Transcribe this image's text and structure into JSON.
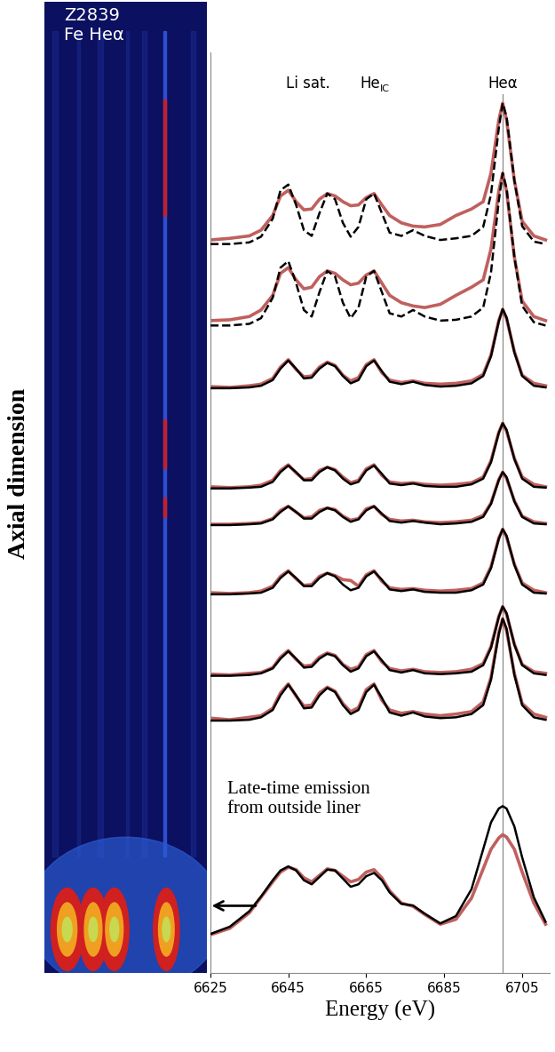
{
  "chart_data": {
    "type": "line",
    "xlabel": "Energy (eV)",
    "ylabel": "Axial dimension",
    "image_label": [
      "Z2839",
      "Fe Heα"
    ],
    "note": "Late-time emission\nfrom outside liner",
    "line_labels": [
      {
        "text": "Li sat.",
        "x": 6650
      },
      {
        "text": "He",
        "subscript": "IC",
        "x": 6666
      },
      {
        "text": "Heα",
        "x": 6700
      }
    ],
    "reference_line_x": 6700,
    "xlim": [
      6625,
      6712
    ],
    "xticks": [
      6625,
      6645,
      6665,
      6685,
      6705
    ],
    "ylim": [
      0,
      11.3
    ],
    "tick_labels": "x",
    "x": [
      6625,
      6630,
      6635,
      6638,
      6641,
      6643,
      6645,
      6647,
      6649,
      6651,
      6653,
      6655,
      6657,
      6659,
      6661,
      6663,
      6665,
      6667,
      6669,
      6671,
      6674,
      6677,
      6680,
      6684,
      6688,
      6692,
      6695,
      6697,
      6699,
      6700,
      6701,
      6703,
      6705,
      6708,
      6711
    ],
    "series": [
      {
        "color": "#c0605e",
        "line_style": "solid",
        "values": [
          9.0,
          9.02,
          9.05,
          9.12,
          9.3,
          9.54,
          9.61,
          9.47,
          9.37,
          9.38,
          9.5,
          9.57,
          9.54,
          9.47,
          9.42,
          9.43,
          9.52,
          9.57,
          9.43,
          9.3,
          9.21,
          9.17,
          9.16,
          9.19,
          9.3,
          9.38,
          9.47,
          9.82,
          10.47,
          10.68,
          10.47,
          9.73,
          9.23,
          9.05,
          9.0
        ]
      },
      {
        "color": "#000000",
        "line_style": "dashed",
        "values": [
          8.95,
          8.95,
          8.97,
          9.04,
          9.26,
          9.61,
          9.68,
          9.43,
          9.12,
          9.05,
          9.33,
          9.57,
          9.5,
          9.21,
          9.04,
          9.16,
          9.5,
          9.57,
          9.33,
          9.09,
          9.05,
          9.12,
          9.05,
          9.0,
          9.02,
          9.05,
          9.16,
          9.56,
          10.37,
          10.68,
          10.51,
          9.73,
          9.17,
          8.98,
          8.95
        ]
      },
      {
        "color": "#c0605e",
        "line_style": "solid",
        "values": [
          8.01,
          8.02,
          8.06,
          8.14,
          8.32,
          8.59,
          8.66,
          8.51,
          8.4,
          8.42,
          8.55,
          8.62,
          8.59,
          8.51,
          8.45,
          8.47,
          8.57,
          8.62,
          8.47,
          8.32,
          8.23,
          8.19,
          8.17,
          8.21,
          8.32,
          8.42,
          8.51,
          8.89,
          9.6,
          9.82,
          9.6,
          8.79,
          8.25,
          8.06,
          8.01
        ]
      },
      {
        "color": "#000000",
        "line_style": "dashed",
        "values": [
          7.95,
          7.95,
          7.97,
          8.04,
          8.29,
          8.66,
          8.74,
          8.47,
          8.14,
          8.06,
          8.36,
          8.62,
          8.55,
          8.23,
          8.04,
          8.17,
          8.55,
          8.62,
          8.36,
          8.1,
          8.06,
          8.14,
          8.06,
          8.01,
          8.02,
          8.06,
          8.17,
          8.6,
          9.48,
          9.82,
          9.63,
          8.79,
          8.19,
          7.99,
          7.95
        ]
      },
      {
        "color": "#c0605e",
        "line_style": "solid",
        "values": [
          7.2,
          7.19,
          7.21,
          7.23,
          7.3,
          7.44,
          7.53,
          7.41,
          7.32,
          7.33,
          7.44,
          7.5,
          7.46,
          7.34,
          7.27,
          7.31,
          7.47,
          7.53,
          7.37,
          7.28,
          7.25,
          7.27,
          7.24,
          7.23,
          7.24,
          7.27,
          7.35,
          7.59,
          8.01,
          8.15,
          8.03,
          7.63,
          7.34,
          7.24,
          7.21
        ]
      },
      {
        "color": "#000000",
        "line_style": "solid",
        "values": [
          7.18,
          7.18,
          7.19,
          7.21,
          7.28,
          7.42,
          7.52,
          7.42,
          7.3,
          7.31,
          7.42,
          7.49,
          7.45,
          7.33,
          7.24,
          7.28,
          7.45,
          7.52,
          7.39,
          7.26,
          7.23,
          7.26,
          7.22,
          7.2,
          7.21,
          7.24,
          7.33,
          7.57,
          8.0,
          8.15,
          8.05,
          7.62,
          7.33,
          7.21,
          7.19
        ]
      },
      {
        "color": "#c0605e",
        "line_style": "solid",
        "values": [
          5.97,
          5.96,
          5.97,
          5.99,
          6.05,
          6.17,
          6.24,
          6.14,
          6.06,
          6.07,
          6.17,
          6.21,
          6.18,
          6.09,
          6.02,
          6.05,
          6.19,
          6.24,
          6.11,
          6.03,
          6.01,
          6.02,
          6.0,
          5.99,
          6.0,
          6.02,
          6.09,
          6.29,
          6.64,
          6.75,
          6.65,
          6.32,
          6.09,
          6.0,
          5.97
        ]
      },
      {
        "color": "#000000",
        "line_style": "solid",
        "values": [
          5.95,
          5.95,
          5.96,
          5.97,
          6.03,
          6.15,
          6.23,
          6.15,
          6.05,
          6.05,
          6.15,
          6.21,
          6.17,
          6.07,
          6.0,
          6.03,
          6.17,
          6.23,
          6.13,
          6.01,
          5.99,
          6.01,
          5.98,
          5.97,
          5.97,
          6.0,
          6.07,
          6.27,
          6.63,
          6.75,
          6.67,
          6.31,
          6.07,
          5.97,
          5.96
        ]
      },
      {
        "color": "#c0605e",
        "line_style": "solid",
        "values": [
          5.51,
          5.51,
          5.52,
          5.53,
          5.58,
          5.68,
          5.73,
          5.66,
          5.59,
          5.6,
          5.68,
          5.71,
          5.69,
          5.61,
          5.56,
          5.58,
          5.7,
          5.73,
          5.63,
          5.57,
          5.55,
          5.56,
          5.54,
          5.53,
          5.54,
          5.56,
          5.62,
          5.77,
          6.06,
          6.15,
          6.07,
          5.8,
          5.61,
          5.54,
          5.52
        ]
      },
      {
        "color": "#000000",
        "line_style": "solid",
        "values": [
          5.5,
          5.5,
          5.51,
          5.52,
          5.57,
          5.66,
          5.73,
          5.66,
          5.58,
          5.58,
          5.66,
          5.71,
          5.68,
          5.6,
          5.54,
          5.57,
          5.68,
          5.73,
          5.64,
          5.55,
          5.53,
          5.55,
          5.53,
          5.51,
          5.52,
          5.54,
          5.6,
          5.76,
          6.05,
          6.15,
          6.09,
          5.79,
          5.6,
          5.52,
          5.51
        ]
      },
      {
        "color": "#c0605e",
        "line_style": "solid",
        "values": [
          4.67,
          4.66,
          4.67,
          4.69,
          4.75,
          4.87,
          4.94,
          4.84,
          4.76,
          4.77,
          4.87,
          4.91,
          4.88,
          4.83,
          4.82,
          4.75,
          4.89,
          4.94,
          4.81,
          4.73,
          4.71,
          4.72,
          4.7,
          4.69,
          4.7,
          4.72,
          4.79,
          4.99,
          5.34,
          5.45,
          5.35,
          5.02,
          4.79,
          4.7,
          4.67
        ]
      },
      {
        "color": "#000000",
        "line_style": "solid",
        "values": [
          4.65,
          4.65,
          4.66,
          4.67,
          4.73,
          4.85,
          4.93,
          4.85,
          4.75,
          4.75,
          4.85,
          4.91,
          4.87,
          4.77,
          4.7,
          4.73,
          4.87,
          4.93,
          4.83,
          4.71,
          4.69,
          4.71,
          4.68,
          4.67,
          4.67,
          4.7,
          4.77,
          4.97,
          5.33,
          5.45,
          5.37,
          5.01,
          4.77,
          4.67,
          4.66
        ]
      },
      {
        "color": "#c0605e",
        "line_style": "solid",
        "values": [
          3.67,
          3.66,
          3.68,
          3.69,
          3.75,
          3.88,
          3.96,
          3.85,
          3.77,
          3.78,
          3.88,
          3.93,
          3.9,
          3.79,
          3.73,
          3.76,
          3.91,
          3.96,
          3.82,
          3.74,
          3.71,
          3.73,
          3.7,
          3.69,
          3.7,
          3.73,
          3.8,
          4.01,
          4.38,
          4.5,
          4.4,
          4.04,
          3.79,
          3.7,
          3.68
        ]
      },
      {
        "color": "#000000",
        "line_style": "solid",
        "values": [
          3.65,
          3.65,
          3.66,
          3.68,
          3.74,
          3.86,
          3.95,
          3.86,
          3.75,
          3.76,
          3.86,
          3.92,
          3.89,
          3.78,
          3.7,
          3.74,
          3.89,
          3.95,
          3.84,
          3.72,
          3.69,
          3.72,
          3.68,
          3.67,
          3.68,
          3.7,
          3.78,
          3.99,
          4.37,
          4.5,
          4.42,
          4.03,
          3.78,
          3.68,
          3.66
        ]
      },
      {
        "color": "#c0605e",
        "line_style": "solid",
        "values": [
          3.13,
          3.11,
          3.14,
          3.16,
          3.25,
          3.44,
          3.55,
          3.4,
          3.28,
          3.29,
          3.44,
          3.51,
          3.46,
          3.31,
          3.21,
          3.26,
          3.48,
          3.55,
          3.35,
          3.23,
          3.19,
          3.21,
          3.18,
          3.16,
          3.18,
          3.21,
          3.33,
          3.63,
          4.18,
          4.35,
          4.2,
          3.68,
          3.31,
          3.18,
          3.14
        ]
      },
      {
        "color": "#000000",
        "line_style": "solid",
        "values": [
          3.1,
          3.1,
          3.11,
          3.14,
          3.23,
          3.41,
          3.54,
          3.41,
          3.25,
          3.26,
          3.41,
          3.5,
          3.45,
          3.29,
          3.18,
          3.23,
          3.45,
          3.54,
          3.38,
          3.2,
          3.16,
          3.2,
          3.15,
          3.13,
          3.14,
          3.18,
          3.29,
          3.6,
          4.16,
          4.35,
          4.23,
          3.66,
          3.29,
          3.14,
          3.11
        ]
      },
      {
        "color": "#c0605e",
        "line_style": "solid",
        "values": [
          0.47,
          0.55,
          0.74,
          0.93,
          1.12,
          1.24,
          1.3,
          1.27,
          1.17,
          1.12,
          1.2,
          1.28,
          1.26,
          1.19,
          1.12,
          1.15,
          1.24,
          1.27,
          1.17,
          1.01,
          0.86,
          0.82,
          0.72,
          0.6,
          0.66,
          0.92,
          1.28,
          1.52,
          1.66,
          1.7,
          1.67,
          1.52,
          1.24,
          0.86,
          0.6
        ]
      },
      {
        "color": "#000000",
        "line_style": "solid",
        "values": [
          0.48,
          0.57,
          0.76,
          0.94,
          1.14,
          1.26,
          1.31,
          1.26,
          1.14,
          1.09,
          1.18,
          1.27,
          1.26,
          1.16,
          1.06,
          1.09,
          1.19,
          1.23,
          1.14,
          0.99,
          0.85,
          0.83,
          0.73,
          0.61,
          0.7,
          1.03,
          1.52,
          1.85,
          2.02,
          2.05,
          2.02,
          1.8,
          1.42,
          0.93,
          0.63
        ]
      }
    ]
  }
}
